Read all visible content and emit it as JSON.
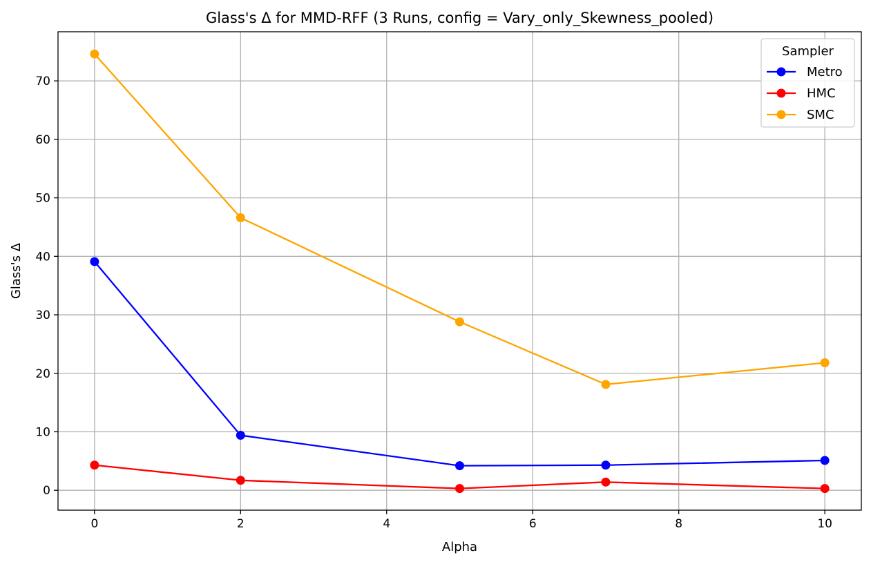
{
  "chart_data": {
    "type": "line",
    "title": "Glass's Δ for MMD-RFF (3 Runs, config = Vary_only_Skewness_pooled)",
    "xlabel": "Alpha",
    "ylabel": "Glass's Δ",
    "x": [
      0,
      2,
      5,
      7,
      10
    ],
    "xlim": [
      -0.5,
      10.5
    ],
    "ylim": [
      -3.4,
      78.4
    ],
    "xticks": [
      0,
      2,
      4,
      6,
      8,
      10
    ],
    "yticks": [
      0,
      10,
      20,
      30,
      40,
      50,
      60,
      70
    ],
    "grid": true,
    "legend": {
      "title": "Sampler",
      "placement": "top-right"
    },
    "series": [
      {
        "name": "Metro",
        "color": "#0000ff",
        "values": [
          39.1,
          9.4,
          4.2,
          4.3,
          5.1
        ]
      },
      {
        "name": "HMC",
        "color": "#ff0000",
        "values": [
          4.3,
          1.7,
          0.3,
          1.4,
          0.3
        ]
      },
      {
        "name": "SMC",
        "color": "#ffa500",
        "values": [
          74.6,
          46.6,
          28.8,
          18.1,
          21.8
        ]
      }
    ]
  }
}
